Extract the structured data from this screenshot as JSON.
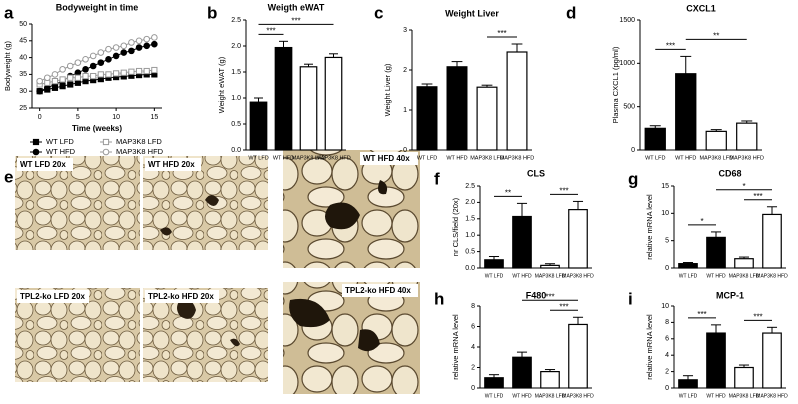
{
  "panel_labels": [
    "a",
    "b",
    "c",
    "d",
    "e",
    "f",
    "g",
    "h",
    "i"
  ],
  "micrographs": [
    "WT LFD 20x",
    "WT HFD 20x",
    "WT HFD 40x",
    "TPL2-ko LFD 20x",
    "TPL2-ko HFD 20x",
    "TPL2-ko HFD 40x"
  ],
  "chart_data": [
    {
      "type": "line",
      "title": "Bodyweight in time",
      "x_label": "Time (weeks)",
      "y_label": "Bodyweight (g)",
      "x": [
        0,
        1,
        2,
        3,
        4,
        5,
        6,
        7,
        8,
        9,
        10,
        11,
        12,
        13,
        14,
        15
      ],
      "xlim": [
        -1,
        16
      ],
      "xticks": [
        0,
        5,
        10,
        15
      ],
      "ylim": [
        25,
        50
      ],
      "yticks": [
        25,
        30,
        35,
        40,
        45,
        50
      ],
      "series": [
        {
          "name": "WT LFD",
          "color": "#000000",
          "marker": "square",
          "filled": true,
          "values": [
            30,
            30.5,
            31,
            31.5,
            32,
            32.5,
            33,
            33.3,
            33.6,
            34,
            34.2,
            34.4,
            34.6,
            34.8,
            35,
            35
          ]
        },
        {
          "name": "WT HFD",
          "color": "#000000",
          "marker": "circle",
          "filled": true,
          "values": [
            30,
            31,
            32,
            33,
            34.5,
            35.5,
            36.5,
            37.5,
            38.5,
            39.5,
            40.5,
            41.5,
            42,
            43,
            43.5,
            44
          ]
        },
        {
          "name": "MAP3K8 LFD",
          "color": "#999999",
          "marker": "square",
          "filled": false,
          "values": [
            32,
            32.5,
            33,
            33.5,
            34,
            34,
            34.5,
            34.5,
            35,
            35,
            35.3,
            35.5,
            35.8,
            36,
            36,
            36.3
          ]
        },
        {
          "name": "MAP3K8 HFD",
          "color": "#999999",
          "marker": "circle",
          "filled": false,
          "values": [
            33,
            34,
            35,
            36.5,
            37.5,
            38.5,
            39.5,
            40.5,
            41.5,
            42.5,
            43,
            43.5,
            44.5,
            45,
            45.5,
            46
          ]
        }
      ]
    },
    {
      "type": "bar",
      "title": "Weigth eWAT",
      "y_label": "Weight eWAT (g)",
      "categories": [
        "WT LFD",
        "WT HFD",
        "MAP3K8 LFD",
        "MAP3K8 HFD"
      ],
      "values": [
        0.92,
        1.97,
        1.6,
        1.78
      ],
      "errors": [
        0.08,
        0.12,
        0.05,
        0.07
      ],
      "colors": [
        "#000000",
        "#000000",
        "#ffffff",
        "#ffffff"
      ],
      "ylim": [
        0,
        2.5
      ],
      "yticks": [
        {
          "value": 0,
          "label": "0.0"
        },
        0.5,
        {
          "value": 1,
          "label": "1.0"
        },
        1.5,
        {
          "value": 2,
          "label": "2.0"
        },
        2.5
      ],
      "significance": [
        {
          "pair": [
            0,
            1
          ],
          "label": "***"
        },
        {
          "pair": [
            0,
            3
          ],
          "label": "***"
        }
      ]
    },
    {
      "type": "bar",
      "title": "Weight Liver",
      "y_label": "Weight Liver (g)",
      "categories": [
        "WT LFD",
        "WT HFD",
        "MAP3K8 LFD",
        "MAP3K8 HFD"
      ],
      "values": [
        1.58,
        2.08,
        1.57,
        2.45
      ],
      "errors": [
        0.07,
        0.13,
        0.05,
        0.2
      ],
      "colors": [
        "#000000",
        "#000000",
        "#ffffff",
        "#ffffff"
      ],
      "ylim": [
        0,
        3
      ],
      "yticks": [
        0,
        1,
        2,
        3
      ],
      "significance": [
        {
          "pair": [
            2,
            3
          ],
          "label": "***"
        }
      ]
    },
    {
      "type": "bar",
      "title": "CXCL1",
      "y_label": "Plasma CXCL1 (pg/ml)",
      "categories": [
        "WT LFD",
        "WT HFD",
        "MAP3K8 LFD",
        "MAP3K8 HFD"
      ],
      "values": [
        250,
        880,
        215,
        310
      ],
      "errors": [
        30,
        200,
        20,
        25
      ],
      "colors": [
        "#000000",
        "#000000",
        "#ffffff",
        "#ffffff"
      ],
      "ylim": [
        0,
        1500
      ],
      "yticks": [
        0,
        500,
        1000,
        1500
      ],
      "significance": [
        {
          "pair": [
            0,
            1
          ],
          "label": "***"
        },
        {
          "pair": [
            1,
            3
          ],
          "label": "**"
        }
      ]
    },
    {
      "type": "bar",
      "title": "CLS",
      "y_label": "nr CLS/field (20x)",
      "categories": [
        "WT LFD",
        "WT HFD",
        "MAP3K8 LFD",
        "MAP3K8 HFD"
      ],
      "values": [
        0.25,
        1.57,
        0.08,
        1.78
      ],
      "errors": [
        0.1,
        0.4,
        0.05,
        0.25
      ],
      "colors": [
        "#000000",
        "#000000",
        "#ffffff",
        "#ffffff"
      ],
      "ylim": [
        0,
        2.5
      ],
      "yticks": [
        {
          "value": 0,
          "label": "0.0"
        },
        0.5,
        {
          "value": 1,
          "label": "1.0"
        },
        1.5,
        {
          "value": 2,
          "label": "2.0"
        },
        2.5
      ],
      "significance": [
        {
          "pair": [
            0,
            1
          ],
          "label": "**"
        },
        {
          "pair": [
            2,
            3
          ],
          "label": "***"
        }
      ]
    },
    {
      "type": "bar",
      "title": "CD68",
      "y_label": "relative mRNA level",
      "categories": [
        "WT LFD",
        "WT HFD",
        "MAP3K8 LFD",
        "MAP3K8 HFD"
      ],
      "values": [
        0.8,
        5.6,
        1.7,
        9.8
      ],
      "errors": [
        0.2,
        1.0,
        0.3,
        1.4
      ],
      "colors": [
        "#000000",
        "#000000",
        "#ffffff",
        "#ffffff"
      ],
      "ylim": [
        0,
        15
      ],
      "yticks": [
        0,
        5,
        10,
        15
      ],
      "significance": [
        {
          "pair": [
            0,
            1
          ],
          "label": "*"
        },
        {
          "pair": [
            2,
            3
          ],
          "label": "***"
        },
        {
          "pair": [
            1,
            3
          ],
          "label": "*"
        }
      ]
    },
    {
      "type": "bar",
      "title": "F480",
      "y_label": "relative mRNA level",
      "categories": [
        "WT LFD",
        "WT HFD",
        "MAP3K8 LFD",
        "MAP3K8 HFD"
      ],
      "values": [
        1.0,
        3.0,
        1.6,
        6.2
      ],
      "errors": [
        0.3,
        0.5,
        0.2,
        0.7
      ],
      "colors": [
        "#000000",
        "#000000",
        "#ffffff",
        "#ffffff"
      ],
      "ylim": [
        0,
        8
      ],
      "yticks": [
        0,
        2,
        4,
        6,
        8
      ],
      "significance": [
        {
          "pair": [
            2,
            3
          ],
          "label": "***"
        },
        {
          "pair": [
            1,
            3
          ],
          "label": "***"
        }
      ]
    },
    {
      "type": "bar",
      "title": "MCP-1",
      "y_label": "relative mRNA level",
      "categories": [
        "WT LFD",
        "WT HFD",
        "MAP3K8 LFD",
        "MAP3K8 HFD"
      ],
      "values": [
        1.0,
        6.7,
        2.5,
        6.7
      ],
      "errors": [
        0.5,
        1.0,
        0.3,
        0.7
      ],
      "colors": [
        "#000000",
        "#000000",
        "#ffffff",
        "#ffffff"
      ],
      "ylim": [
        0,
        10
      ],
      "yticks": [
        0,
        2,
        4,
        6,
        8,
        10
      ],
      "significance": [
        {
          "pair": [
            0,
            1
          ],
          "label": "***"
        },
        {
          "pair": [
            2,
            3
          ],
          "label": "***"
        }
      ]
    }
  ]
}
